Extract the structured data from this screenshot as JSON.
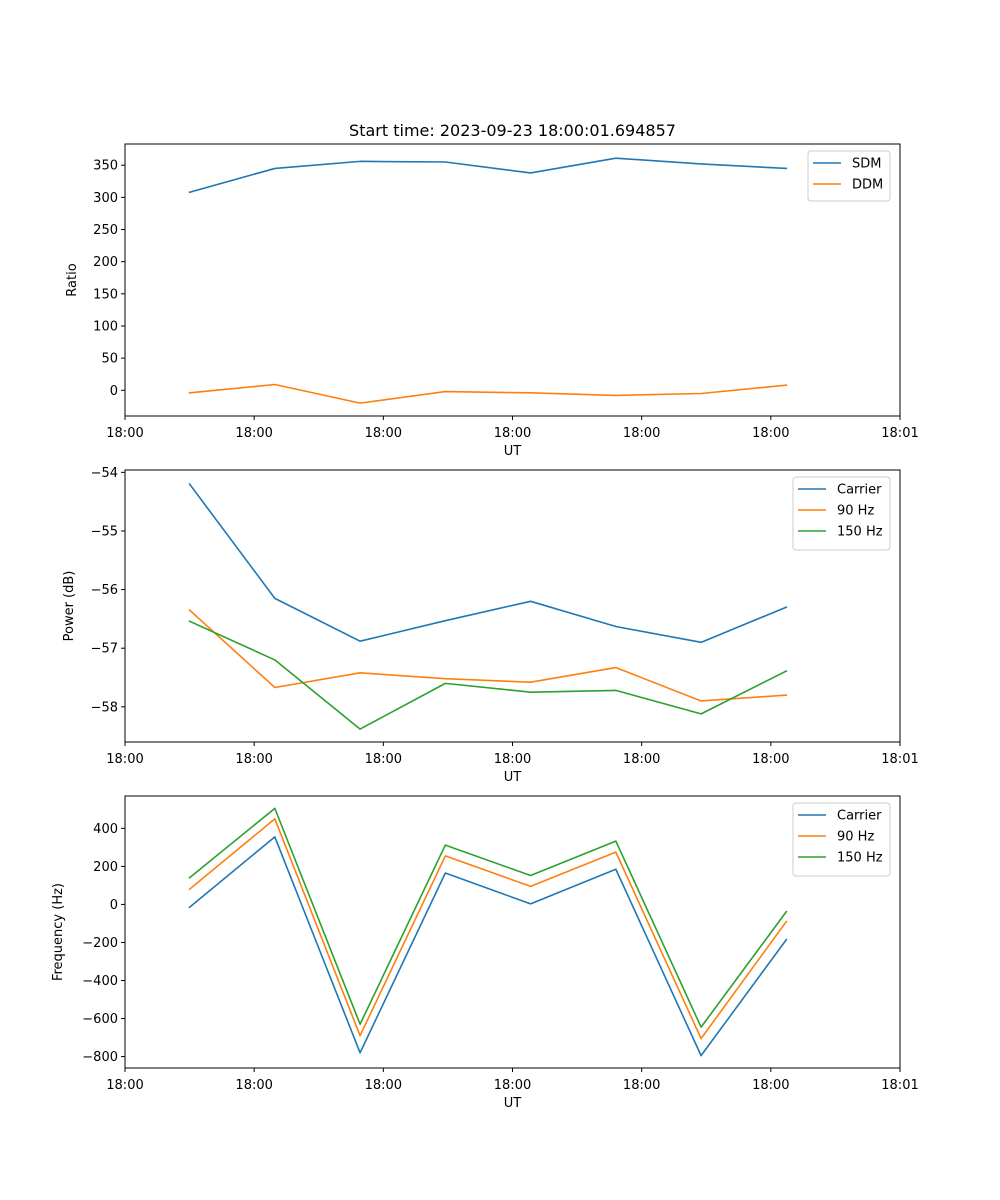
{
  "colors": {
    "blue": "#1f77b4",
    "orange": "#ff7f0e",
    "green": "#2ca02c"
  },
  "chart_data": [
    {
      "type": "line",
      "title": "Start time: 2023-09-23 18:00:01.694857",
      "xlabel": "UT",
      "ylabel": "Ratio",
      "xlim": [
        0,
        3.0
      ],
      "ylim": [
        -40,
        383
      ],
      "x": [
        0.25,
        0.58,
        0.91,
        1.24,
        1.57,
        1.9,
        2.23,
        2.56
      ],
      "xticks": [
        0.0,
        0.5,
        1.0,
        1.5,
        2.0,
        2.5,
        3.0
      ],
      "xtick_labels": [
        "18:00",
        "18:00",
        "18:00",
        "18:00",
        "18:00",
        "18:00",
        "18:01"
      ],
      "yticks": [
        0,
        50,
        100,
        150,
        200,
        250,
        300,
        350
      ],
      "ytick_labels": [
        "0",
        "50",
        "100",
        "150",
        "200",
        "250",
        "300",
        "350"
      ],
      "legend_position": "top-right",
      "series": [
        {
          "name": "SDM",
          "color": "#1f77b4",
          "values": [
            308,
            345,
            356,
            355,
            338,
            361,
            352,
            345
          ]
        },
        {
          "name": "DDM",
          "color": "#ff7f0e",
          "values": [
            -4,
            9,
            -20,
            -2,
            -4,
            -8,
            -5,
            8
          ]
        }
      ]
    },
    {
      "type": "line",
      "title": "",
      "xlabel": "UT",
      "ylabel": "Power (dB)",
      "xlim": [
        0,
        3.0
      ],
      "ylim": [
        -58.6,
        -53.96
      ],
      "x": [
        0.25,
        0.58,
        0.91,
        1.24,
        1.57,
        1.9,
        2.23,
        2.56
      ],
      "xticks": [
        0.0,
        0.5,
        1.0,
        1.5,
        2.0,
        2.5,
        3.0
      ],
      "xtick_labels": [
        "18:00",
        "18:00",
        "18:00",
        "18:00",
        "18:00",
        "18:00",
        "18:01"
      ],
      "yticks": [
        -58,
        -57,
        -56,
        -55,
        -54
      ],
      "ytick_labels": [
        "−58",
        "−57",
        "−56",
        "−55",
        "−54"
      ],
      "legend_position": "top-right",
      "series": [
        {
          "name": "Carrier",
          "color": "#1f77b4",
          "values": [
            -54.2,
            -56.15,
            -56.88,
            -56.53,
            -56.2,
            -56.63,
            -56.9,
            -56.3
          ]
        },
        {
          "name": "90 Hz",
          "color": "#ff7f0e",
          "values": [
            -56.35,
            -57.67,
            -57.42,
            -57.52,
            -57.58,
            -57.33,
            -57.9,
            -57.8
          ]
        },
        {
          "name": "150 Hz",
          "color": "#2ca02c",
          "values": [
            -56.54,
            -57.2,
            -58.38,
            -57.6,
            -57.75,
            -57.72,
            -58.12,
            -57.39
          ]
        }
      ]
    },
    {
      "type": "line",
      "title": "",
      "xlabel": "UT",
      "ylabel": "Frequency (Hz)",
      "xlim": [
        0,
        3.0
      ],
      "ylim": [
        -860,
        570
      ],
      "x": [
        0.25,
        0.58,
        0.91,
        1.24,
        1.57,
        1.9,
        2.23,
        2.56
      ],
      "xticks": [
        0.0,
        0.5,
        1.0,
        1.5,
        2.0,
        2.5,
        3.0
      ],
      "xtick_labels": [
        "18:00",
        "18:00",
        "18:00",
        "18:00",
        "18:00",
        "18:00",
        "18:01"
      ],
      "yticks": [
        -800,
        -600,
        -400,
        -200,
        0,
        200,
        400
      ],
      "ytick_labels": [
        "−800",
        "−600",
        "−400",
        "−200",
        "0",
        "200",
        "400"
      ],
      "legend_position": "top-right",
      "series": [
        {
          "name": "Carrier",
          "color": "#1f77b4",
          "values": [
            -15,
            355,
            -780,
            165,
            3,
            185,
            -795,
            -185
          ]
        },
        {
          "name": "90 Hz",
          "color": "#ff7f0e",
          "values": [
            80,
            450,
            -690,
            255,
            95,
            275,
            -705,
            -90
          ]
        },
        {
          "name": "150 Hz",
          "color": "#2ca02c",
          "values": [
            140,
            505,
            -630,
            312,
            152,
            333,
            -645,
            -38
          ]
        }
      ]
    }
  ]
}
